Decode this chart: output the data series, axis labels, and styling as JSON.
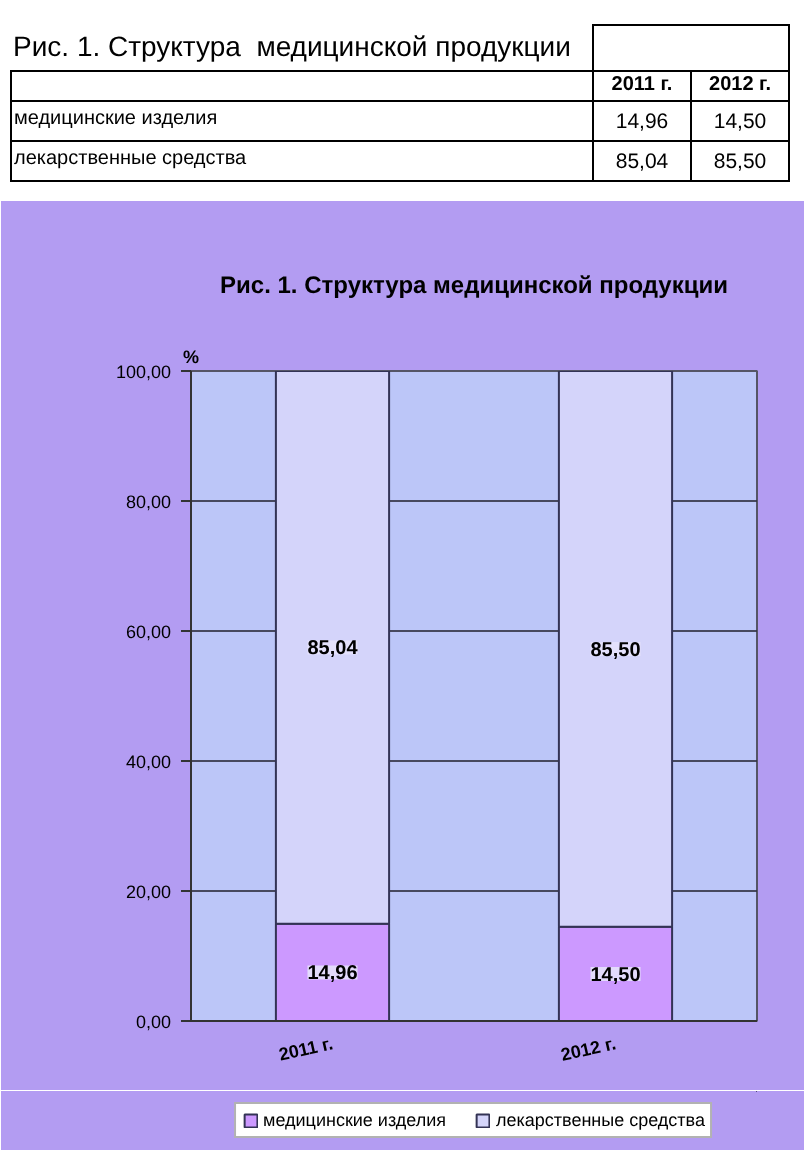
{
  "chart_data": {
    "type": "bar",
    "title": "Рис. 1. Структура медицинской продукции",
    "annotations": [
      "Рис. 1. Структура  медицинской продукции"
    ],
    "categories": [
      "2011 г.",
      "2012 г."
    ],
    "stacked": true,
    "series": [
      {
        "name": "медицинские изделия",
        "color": "#cc99ff",
        "values": [
          14.96,
          14.5
        ],
        "value_labels": [
          "14,96",
          "14,50"
        ]
      },
      {
        "name": "лекарственные средства",
        "color": "#d4d4fa",
        "values": [
          85.04,
          85.5
        ],
        "value_labels": [
          "85,04",
          "85,50"
        ]
      }
    ],
    "ylabel": "%",
    "ylim": [
      0,
      100
    ],
    "yticks": [
      {
        "value": 0,
        "label": "0,00"
      },
      {
        "value": 20,
        "label": "20,00"
      },
      {
        "value": 40,
        "label": "40,00"
      },
      {
        "value": 60,
        "label": "60,00"
      },
      {
        "value": 80,
        "label": "80,00"
      },
      {
        "value": 100,
        "label": "100,00"
      }
    ],
    "grid": "y",
    "legend": "bottom"
  }
}
